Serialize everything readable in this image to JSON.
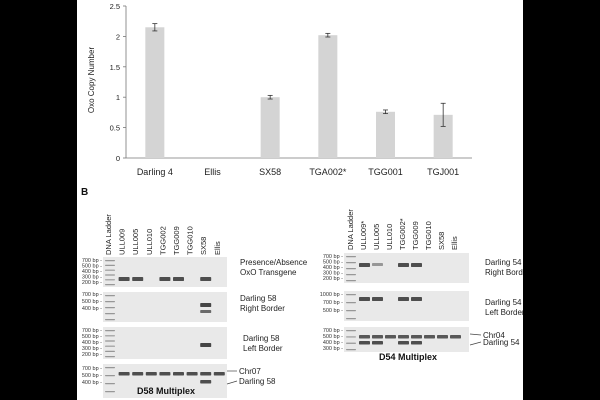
{
  "chart_data": {
    "type": "bar",
    "ylabel": "Oxo Copy Number",
    "xlabel": "",
    "ylim": [
      0,
      2.5
    ],
    "yticks": [
      "0",
      "0.5",
      "1",
      "1.5",
      "2",
      "2.5"
    ],
    "categories": [
      "Darling 4",
      "Ellis",
      "SX58",
      "TGA002*",
      "TGG001",
      "TGJ001"
    ],
    "values": [
      2.15,
      0,
      1.0,
      2.02,
      0.76,
      0.71
    ],
    "errors": [
      0.06,
      0,
      0.03,
      0.03,
      0.03,
      0.19
    ],
    "bar_color": "#d4d4d4"
  },
  "panel_b": {
    "letter": "B",
    "ladder_labels": [
      "700 bp -",
      "500 bp -",
      "400 bp -",
      "300 bp -",
      "200 bp -"
    ],
    "ladder_labels_1000": [
      "1000 bp -",
      "700 bp -",
      "500 bp -"
    ],
    "left": {
      "lanes": [
        "DNA Ladder",
        "ULL009",
        "ULL005",
        "ULL010",
        "TGG002",
        "TGG009",
        "TGG010",
        "SX58",
        "Ellis"
      ],
      "row1_label": [
        "Presence/Absence",
        "OxO Transgene"
      ],
      "row2_label": [
        "Darling 58",
        "Right Border"
      ],
      "row3_label": [
        "Darling 58",
        "Left Border"
      ],
      "row4_labels": [
        "Chr07",
        "Darling 58"
      ],
      "multiplex_title": "D58 Multiplex"
    },
    "right": {
      "lanes": [
        "DNA Ladder",
        "ULL009*",
        "ULL005",
        "ULL010",
        "TGG002*",
        "TGG009",
        "TGG010",
        "SX58",
        "Ellis"
      ],
      "row1_label": [
        "Darling 54",
        "Right Border"
      ],
      "row2_label": [
        "Darling 54",
        "Left Border"
      ],
      "row3_labels": [
        "Chr04",
        "Darling 54"
      ],
      "multiplex_title": "D54 Multiplex"
    }
  }
}
